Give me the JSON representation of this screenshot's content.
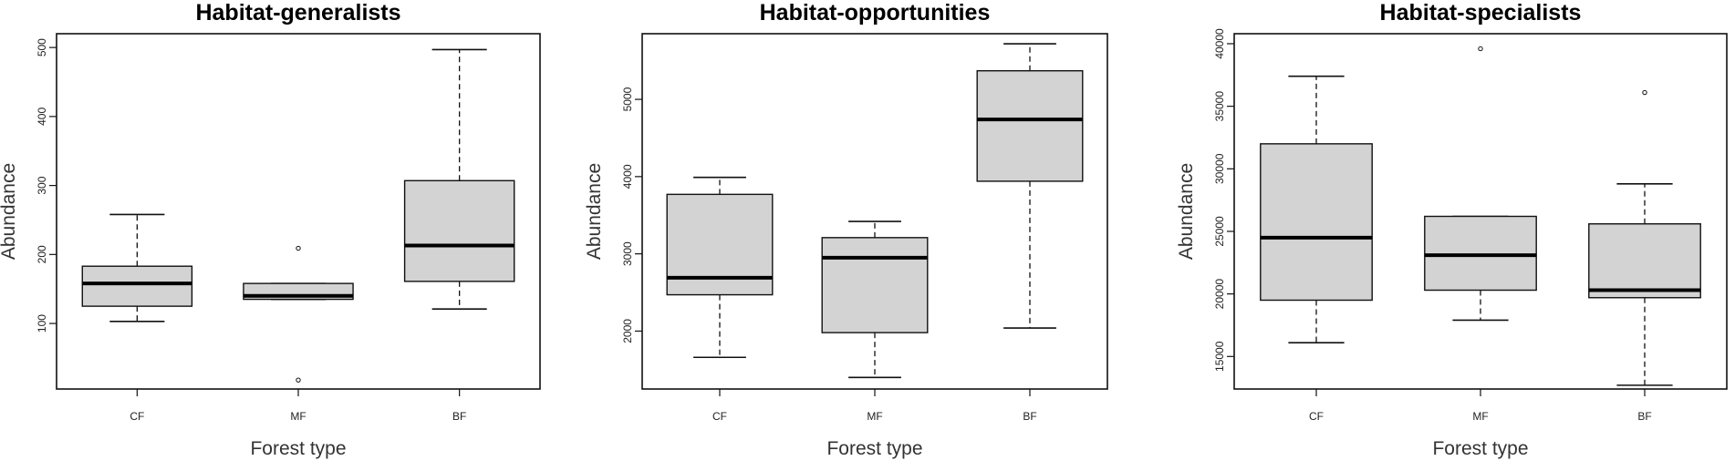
{
  "chart_data": [
    {
      "type": "boxplot",
      "title": "Habitat-generalists",
      "xlabel": "Forest type",
      "ylabel": "Abundance",
      "categories": [
        "CF",
        "MF",
        "BF"
      ],
      "ylim": [
        5,
        520
      ],
      "yticks": [
        100,
        200,
        300,
        400,
        500
      ],
      "boxes": [
        {
          "category": "CF",
          "min": 103,
          "q1": 125,
          "median": 158,
          "q3": 183,
          "max": 258,
          "outliers": []
        },
        {
          "category": "MF",
          "min": 135,
          "q1": 135,
          "median": 140,
          "q3": 158,
          "max": 158,
          "outliers": [
            209,
            18
          ]
        },
        {
          "category": "BF",
          "min": 121,
          "q1": 161,
          "median": 213,
          "q3": 307,
          "max": 497,
          "outliers": []
        }
      ]
    },
    {
      "type": "boxplot",
      "title": "Habitat-opportunities",
      "xlabel": "Forest type",
      "ylabel": "Abundance",
      "categories": [
        "CF",
        "MF",
        "BF"
      ],
      "ylim": [
        1250,
        5850
      ],
      "yticks": [
        2000,
        3000,
        4000,
        5000
      ],
      "boxes": [
        {
          "category": "CF",
          "min": 1660,
          "q1": 2470,
          "median": 2690,
          "q3": 3770,
          "max": 3990,
          "outliers": []
        },
        {
          "category": "MF",
          "min": 1400,
          "q1": 1980,
          "median": 2950,
          "q3": 3210,
          "max": 3420,
          "outliers": []
        },
        {
          "category": "BF",
          "min": 2040,
          "q1": 3940,
          "median": 4740,
          "q3": 5370,
          "max": 5720,
          "outliers": []
        }
      ]
    },
    {
      "type": "boxplot",
      "title": "Habitat-specialists",
      "xlabel": "Forest type",
      "ylabel": "Abundance",
      "categories": [
        "CF",
        "MF",
        "BF"
      ],
      "ylim": [
        12400,
        40800
      ],
      "yticks": [
        15000,
        20000,
        25000,
        30000,
        35000,
        40000
      ],
      "boxes": [
        {
          "category": "CF",
          "min": 16100,
          "q1": 19500,
          "median": 24500,
          "q3": 32000,
          "max": 37400,
          "outliers": []
        },
        {
          "category": "MF",
          "min": 17900,
          "q1": 20300,
          "median": 23100,
          "q3": 26200,
          "max": 26200,
          "outliers": [
            39600
          ]
        },
        {
          "category": "BF",
          "min": 12700,
          "q1": 19700,
          "median": 20300,
          "q3": 25600,
          "max": 28800,
          "outliers": [
            36100
          ]
        }
      ]
    }
  ],
  "colors": {
    "box_fill": "#d3d3d3",
    "box_stroke": "#111111",
    "median": "#000000"
  }
}
